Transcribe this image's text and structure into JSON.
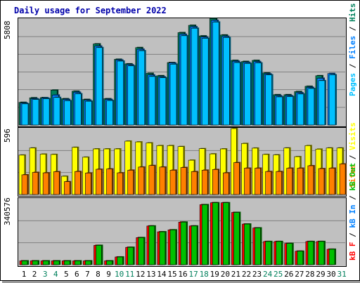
{
  "title": "Daily usage for September 2022",
  "labels": {
    "hits_panel": [
      {
        "text": "Pages",
        "color": "#00c0ff"
      },
      {
        "text": " / ",
        "color": "#000000"
      },
      {
        "text": "Files",
        "color": "#0080ff"
      },
      {
        "text": " / ",
        "color": "#000000"
      },
      {
        "text": "Hits",
        "color": "#00805c"
      }
    ],
    "sites_panel": [
      {
        "text": "Sites",
        "color": "#ff8000"
      },
      {
        "text": " / ",
        "color": "#000000"
      },
      {
        "text": "Visits",
        "color": "#ffff00"
      }
    ],
    "kb_panel": [
      {
        "text": "kB F",
        "color": "#ff0000"
      },
      {
        "text": " / ",
        "color": "#000000"
      },
      {
        "text": "kB In",
        "color": "#0080ff"
      },
      {
        "text": " / ",
        "color": "#000000"
      },
      {
        "text": "kB Out",
        "color": "#00c000"
      }
    ]
  },
  "colors": {
    "hits": "#00805c",
    "files": "#0080ff",
    "pages": "#00c0ff",
    "visits": "#ffff00",
    "sites": "#ff8000",
    "kbin": "#ff0000",
    "kbout": "#00c000",
    "panel_bg": "#c0c0c0",
    "gridline": "#808080",
    "weekend_label": "#00805c",
    "weekday_label": "#000000"
  },
  "chart_data": [
    {
      "type": "bar",
      "panel": "hits",
      "ymax_label": "5808",
      "ylim": [
        0,
        5808
      ],
      "categories": [
        "1",
        "2",
        "3",
        "4",
        "5",
        "6",
        "7",
        "8",
        "9",
        "10",
        "11",
        "12",
        "13",
        "14",
        "15",
        "16",
        "17",
        "18",
        "19",
        "20",
        "21",
        "22",
        "23",
        "24",
        "25",
        "26",
        "27",
        "28",
        "29",
        "30",
        "31"
      ],
      "weekend_days": [
        3,
        4,
        10,
        11,
        17,
        18,
        24,
        25,
        31
      ],
      "series": [
        {
          "name": "Hits",
          "values": [
            1240,
            1490,
            1500,
            1910,
            1440,
            1850,
            1400,
            4440,
            1440,
            3600,
            3350,
            4240,
            2830,
            2700,
            3420,
            5060,
            5460,
            4880,
            5830,
            4930,
            3540,
            3480,
            3540,
            2850,
            1660,
            1660,
            1830,
            2120,
            2700,
            null,
            null
          ]
        },
        {
          "name": "Files",
          "values": [
            1200,
            1440,
            1480,
            1640,
            1400,
            1790,
            1360,
            4320,
            1400,
            3560,
            3300,
            4150,
            2740,
            2640,
            3400,
            4970,
            5380,
            4820,
            5730,
            4860,
            3490,
            3430,
            3470,
            2800,
            1600,
            1610,
            1770,
            2060,
            2560,
            2820,
            null
          ]
        },
        {
          "name": "Pages",
          "values": [
            1160,
            1400,
            1440,
            1510,
            1330,
            1710,
            1300,
            4240,
            1340,
            3500,
            3240,
            4070,
            2660,
            2590,
            3330,
            4890,
            5300,
            4750,
            5640,
            4790,
            3420,
            3370,
            3400,
            2750,
            1540,
            1560,
            1700,
            2000,
            2430,
            2750,
            null
          ]
        }
      ]
    },
    {
      "type": "bar",
      "panel": "sites",
      "ymax_label": "596",
      "ylim": [
        0,
        596
      ],
      "series": [
        {
          "name": "Visits",
          "values": [
            356,
            420,
            365,
            362,
            165,
            426,
            337,
            412,
            412,
            412,
            482,
            475,
            466,
            442,
            442,
            433,
            310,
            414,
            367,
            412,
            596,
            461,
            419,
            362,
            358,
            420,
            342,
            442,
            410,
            420,
            420
          ]
        },
        {
          "name": "Sites",
          "values": [
            178,
            200,
            196,
            206,
            116,
            208,
            194,
            228,
            231,
            196,
            220,
            248,
            262,
            248,
            220,
            244,
            207,
            220,
            226,
            196,
            288,
            238,
            238,
            208,
            208,
            238,
            238,
            260,
            234,
            238,
            276
          ]
        }
      ]
    },
    {
      "type": "bar",
      "panel": "kb",
      "ymax_label": "340576",
      "ylim": [
        0,
        340576
      ],
      "series": [
        {
          "name": "kB F",
          "values": [
            20000,
            20000,
            20000,
            20000,
            20000,
            20000,
            20000,
            100000,
            20000,
            40000,
            90000,
            140000,
            200000,
            170000,
            180000,
            220000,
            200000,
            310000,
            320000,
            320000,
            270000,
            210000,
            190000,
            120000,
            120000,
            110000,
            70000,
            120000,
            120000,
            80000,
            null
          ]
        },
        {
          "name": "kB Out",
          "values": [
            20000,
            20000,
            20000,
            20000,
            20000,
            20000,
            20000,
            100000,
            20000,
            40000,
            90000,
            140000,
            200000,
            170000,
            180000,
            220000,
            200000,
            310000,
            320000,
            320000,
            270000,
            210000,
            190000,
            120000,
            120000,
            110000,
            70000,
            120000,
            120000,
            80000,
            null
          ]
        }
      ]
    }
  ]
}
